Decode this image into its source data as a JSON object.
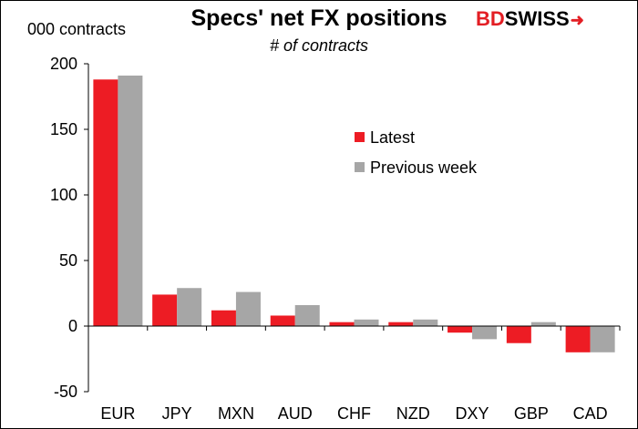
{
  "title": "Specs' net FX positions",
  "subtitle": "# of contracts",
  "unit_label": "000 contracts",
  "logo": {
    "bd": "BD",
    "swiss": "SWISS",
    "arrow": "➜"
  },
  "colors": {
    "latest": "#ed1c24",
    "previous": "#a6a6a6",
    "axis": "#000000"
  },
  "chart_data": {
    "type": "bar",
    "ylabel": "000 contracts",
    "xlabel": "",
    "categories": [
      "EUR",
      "JPY",
      "MXN",
      "AUD",
      "CHF",
      "NZD",
      "DXY",
      "GBP",
      "CAD"
    ],
    "series": [
      {
        "name": "Latest",
        "values": [
          188,
          24,
          12,
          8,
          3,
          3,
          -5,
          -13,
          -20
        ]
      },
      {
        "name": "Previous week",
        "values": [
          191,
          29,
          26,
          16,
          5,
          5,
          -10,
          3,
          -20
        ]
      }
    ],
    "ylim": [
      -50,
      200
    ],
    "yticks": [
      -50,
      0,
      50,
      100,
      150,
      200
    ],
    "grid": false,
    "legend": "top-right inside"
  }
}
